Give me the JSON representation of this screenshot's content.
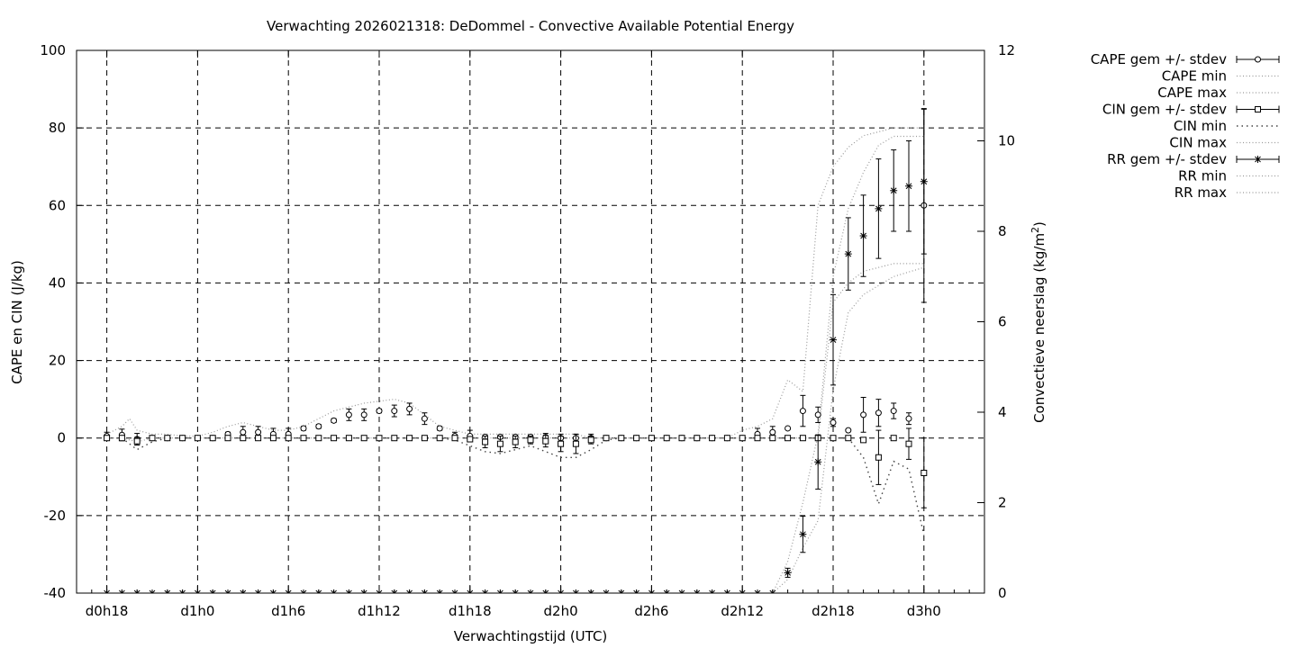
{
  "chart_data": {
    "type": "line",
    "title": "Verwachting 2026021318: DeDommel - Convective Available Potential Energy",
    "xlabel": "Verwachtingstijd (UTC)",
    "ylabel": "CAPE en CIN (J/kg)",
    "y2label": "Convectieve neerslag (kg/m",
    "y2label_sup": "2",
    "y2label_end": ")",
    "grid": true,
    "legend_position": "outside-right",
    "x_hour_range": [
      -2,
      58
    ],
    "ylim": [
      -40,
      100
    ],
    "y2lim": [
      0,
      12
    ],
    "x_ticks": [
      {
        "hour": 0,
        "label": "d0h18"
      },
      {
        "hour": 6,
        "label": "d1h0"
      },
      {
        "hour": 12,
        "label": "d1h6"
      },
      {
        "hour": 18,
        "label": "d1h12"
      },
      {
        "hour": 24,
        "label": "d1h18"
      },
      {
        "hour": 30,
        "label": "d2h0"
      },
      {
        "hour": 36,
        "label": "d2h6"
      },
      {
        "hour": 42,
        "label": "d2h12"
      },
      {
        "hour": 48,
        "label": "d2h18"
      },
      {
        "hour": 54,
        "label": "d3h0"
      }
    ],
    "y_ticks": [
      "-40",
      "-20",
      "0",
      "20",
      "40",
      "60",
      "80",
      "100"
    ],
    "y_tick_values": [
      -40,
      -20,
      0,
      20,
      40,
      60,
      80,
      100
    ],
    "y2_ticks": [
      "0",
      "2",
      "4",
      "6",
      "8",
      "10",
      "12"
    ],
    "y2_tick_values": [
      0,
      2,
      4,
      6,
      8,
      10,
      12
    ],
    "legend": [
      {
        "label": "CAPE gem +/- stdev",
        "style": "errorbar",
        "marker": "circle"
      },
      {
        "label": "CAPE min",
        "style": "dotted"
      },
      {
        "label": "CAPE max",
        "style": "dotted"
      },
      {
        "label": "CIN gem +/- stdev",
        "style": "errorbar",
        "marker": "square"
      },
      {
        "label": "CIN min",
        "style": "dotted-coarse"
      },
      {
        "label": "CIN max",
        "style": "dotted"
      },
      {
        "label": "RR gem +/- stdev",
        "style": "errorbar",
        "marker": "star"
      },
      {
        "label": "RR min",
        "style": "dotted"
      },
      {
        "label": "RR max",
        "style": "dotted"
      }
    ],
    "series": [
      {
        "name": "CAPE gem +/- stdev",
        "axis": "y",
        "marker": "circle",
        "x": [
          0,
          1,
          2,
          3,
          4,
          5,
          6,
          7,
          8,
          9,
          10,
          11,
          12,
          13,
          14,
          15,
          16,
          17,
          18,
          19,
          20,
          21,
          22,
          23,
          24,
          25,
          26,
          27,
          28,
          29,
          30,
          31,
          32,
          33,
          34,
          35,
          36,
          37,
          38,
          39,
          40,
          41,
          42,
          43,
          44,
          45,
          46,
          47,
          48,
          49,
          50,
          51,
          52,
          53,
          54
        ],
        "y": [
          0.5,
          0.8,
          -0.3,
          0,
          0,
          0,
          0,
          0,
          1,
          1.5,
          1.5,
          1.0,
          1.0,
          2.5,
          3,
          4.5,
          6,
          6,
          7,
          7,
          7.5,
          5,
          2.5,
          0.5,
          0.5,
          0.3,
          0.3,
          0.3,
          0.3,
          0.2,
          0,
          0,
          0,
          0,
          0,
          0,
          0,
          0,
          0,
          0,
          0,
          0,
          0,
          1,
          1.5,
          2.5,
          7,
          6,
          4,
          2,
          6,
          6.5,
          7,
          5,
          60
        ],
        "err": [
          1,
          1.5,
          1.5,
          0,
          0,
          0,
          0,
          0,
          0.5,
          1.5,
          1.5,
          1.5,
          1.5,
          0.5,
          0.5,
          0.5,
          1.5,
          1.5,
          0.5,
          1.5,
          1.5,
          1.5,
          0.5,
          1,
          1.5,
          0.5,
          0.5,
          0.5,
          0.5,
          1,
          1,
          1,
          1,
          0,
          0,
          0,
          0,
          0,
          0,
          0,
          0,
          0,
          0,
          1.5,
          1.5,
          0,
          4,
          2,
          1,
          0,
          4.5,
          3.5,
          2,
          1.5,
          25
        ]
      },
      {
        "name": "CAPE max",
        "axis": "y",
        "x": [
          0,
          1,
          1.5,
          2,
          3,
          4,
          5,
          6,
          7,
          8,
          9,
          10,
          11,
          12,
          13,
          14,
          15,
          16,
          17,
          18,
          19,
          20,
          21,
          22,
          23,
          24,
          25,
          26,
          27,
          28,
          29,
          30,
          31,
          32,
          33,
          34,
          35,
          36,
          37,
          38,
          39,
          40,
          41,
          42,
          43,
          44,
          45,
          46,
          47,
          48,
          49,
          50,
          51,
          52,
          53,
          54
        ],
        "y": [
          1,
          3,
          5,
          2,
          1,
          1,
          0.5,
          0.5,
          1.5,
          3,
          4,
          3,
          2,
          2,
          3,
          5,
          7,
          8,
          9,
          9.5,
          10,
          9,
          6,
          3,
          2,
          1,
          1,
          1,
          1,
          1,
          1,
          1,
          1,
          0,
          0,
          0,
          0,
          0,
          0,
          0,
          0,
          0,
          0,
          2,
          3,
          5,
          15,
          12,
          60,
          70,
          75,
          78,
          79,
          80,
          80,
          80
        ]
      },
      {
        "name": "CAPE min",
        "axis": "y",
        "x": [
          0,
          1,
          2,
          3,
          4,
          5,
          6,
          7,
          8,
          9,
          10,
          11,
          12,
          13,
          14,
          15,
          16,
          17,
          18,
          19,
          20,
          21,
          22,
          23,
          24,
          25,
          26,
          27,
          28,
          29,
          30,
          31,
          32,
          33,
          34,
          35,
          36,
          37,
          38,
          39,
          40,
          41,
          42,
          43,
          44,
          45,
          46,
          47,
          48,
          49,
          50,
          51,
          52,
          53,
          54
        ],
        "y": [
          0,
          0,
          -1,
          0,
          0,
          0,
          0,
          0,
          0,
          0,
          0,
          0,
          0,
          0,
          0,
          0,
          0,
          0,
          0,
          0,
          0,
          0,
          0,
          0,
          0,
          0,
          0,
          0,
          0,
          0,
          0,
          0,
          0,
          0,
          0,
          0,
          0,
          0,
          0,
          0,
          0,
          0,
          0,
          0,
          0,
          0,
          0,
          0,
          35,
          40,
          43,
          44,
          45,
          45,
          45
        ]
      },
      {
        "name": "CIN gem +/- stdev",
        "axis": "y",
        "marker": "square",
        "x": [
          0,
          1,
          2,
          3,
          4,
          5,
          6,
          7,
          8,
          9,
          10,
          11,
          12,
          13,
          14,
          15,
          16,
          17,
          18,
          19,
          20,
          21,
          22,
          23,
          24,
          25,
          26,
          27,
          28,
          29,
          30,
          31,
          32,
          33,
          34,
          35,
          36,
          37,
          38,
          39,
          40,
          41,
          42,
          43,
          44,
          45,
          46,
          47,
          48,
          49,
          50,
          51,
          52,
          53,
          54
        ],
        "y": [
          0,
          0,
          -0.8,
          0,
          0,
          0,
          0,
          0,
          0,
          0,
          0,
          0,
          0,
          0,
          0,
          0,
          0,
          0,
          0,
          0,
          0,
          0,
          0,
          0,
          -0.3,
          -1,
          -1.5,
          -1,
          -0.5,
          -0.8,
          -1.5,
          -1.5,
          -0.5,
          0,
          0,
          0,
          0,
          0,
          0,
          0,
          0,
          0,
          0,
          0,
          0,
          0,
          0,
          0,
          0,
          0,
          -0.5,
          -5,
          0,
          -1.5,
          -9
        ],
        "err": [
          0,
          0,
          1,
          0,
          0,
          0,
          0,
          0,
          0,
          0,
          0,
          0,
          0,
          0,
          0,
          0,
          0,
          0,
          0,
          0,
          0,
          0,
          0,
          0,
          0.5,
          1.5,
          2,
          1.5,
          1,
          1.5,
          2,
          2.5,
          1,
          0,
          0,
          0,
          0,
          0,
          0,
          0,
          0,
          0,
          0,
          0,
          0,
          0,
          0,
          0,
          0,
          0,
          0.5,
          7,
          0,
          4,
          9
        ]
      },
      {
        "name": "CIN min",
        "axis": "y",
        "x": [
          0,
          1,
          2,
          3,
          4,
          5,
          6,
          7,
          8,
          9,
          10,
          11,
          12,
          13,
          14,
          15,
          16,
          17,
          18,
          19,
          20,
          21,
          22,
          23,
          24,
          25,
          26,
          27,
          28,
          29,
          30,
          31,
          32,
          33,
          34,
          35,
          36,
          37,
          38,
          39,
          40,
          41,
          42,
          43,
          44,
          45,
          46,
          47,
          48,
          49,
          50,
          51,
          52,
          53,
          54
        ],
        "y": [
          0,
          0,
          -3,
          -1,
          0,
          0,
          0,
          0,
          0,
          0,
          0,
          0,
          0,
          0,
          0,
          0,
          0,
          0,
          0,
          0,
          0,
          0,
          0,
          -0.5,
          -2,
          -3.5,
          -4,
          -3,
          -2,
          -3.5,
          -5,
          -5,
          -3,
          -0.5,
          0,
          0,
          0,
          0,
          0,
          0,
          0,
          0,
          0,
          0,
          0,
          0,
          0,
          0,
          0,
          0,
          -5,
          -17,
          -6,
          -8,
          -25
        ]
      },
      {
        "name": "RR gem +/- stdev",
        "axis": "y2",
        "marker": "star",
        "x": [
          0,
          1,
          2,
          3,
          4,
          5,
          6,
          7,
          8,
          9,
          10,
          11,
          12,
          13,
          14,
          15,
          16,
          17,
          18,
          19,
          20,
          21,
          22,
          23,
          24,
          25,
          26,
          27,
          28,
          29,
          30,
          31,
          32,
          33,
          34,
          35,
          36,
          37,
          38,
          39,
          40,
          41,
          42,
          43,
          44,
          45,
          46,
          47,
          48,
          49,
          50,
          51,
          52,
          53,
          54
        ],
        "y": [
          0,
          0,
          0,
          0,
          0,
          0,
          0,
          0,
          0,
          0,
          0,
          0,
          0,
          0,
          0,
          0,
          0,
          0,
          0,
          0,
          0,
          0,
          0,
          0,
          0,
          0,
          0,
          0,
          0,
          0,
          0,
          0,
          0,
          0,
          0,
          0,
          0,
          0,
          0,
          0,
          0,
          0,
          0,
          0,
          0,
          0.45,
          1.3,
          2.9,
          5.6,
          7.5,
          7.9,
          8.5,
          8.9,
          9.0,
          9.1
        ],
        "err": [
          0,
          0,
          0,
          0,
          0,
          0,
          0,
          0,
          0,
          0,
          0,
          0,
          0,
          0,
          0,
          0,
          0,
          0,
          0,
          0,
          0,
          0,
          0,
          0,
          0,
          0,
          0,
          0,
          0,
          0,
          0,
          0,
          0,
          0,
          0,
          0,
          0,
          0,
          0,
          0,
          0,
          0,
          0,
          0,
          0,
          0.1,
          0.4,
          0.6,
          1.0,
          0.8,
          0.9,
          1.1,
          0.9,
          1.0,
          1.6
        ]
      },
      {
        "name": "RR max",
        "axis": "y2",
        "x": [
          44,
          45,
          46,
          47,
          48,
          49,
          50,
          51,
          52,
          53,
          54
        ],
        "y": [
          0,
          0.7,
          2,
          3.5,
          7,
          8.5,
          9.3,
          9.9,
          10.1,
          10.1,
          10.1
        ]
      },
      {
        "name": "RR min",
        "axis": "y2",
        "x": [
          44,
          45,
          46,
          47,
          48,
          49,
          50,
          51,
          52,
          53,
          54
        ],
        "y": [
          0,
          0.3,
          1,
          1.6,
          4.5,
          6.2,
          6.6,
          6.8,
          7.0,
          7.1,
          7.2
        ]
      }
    ]
  }
}
